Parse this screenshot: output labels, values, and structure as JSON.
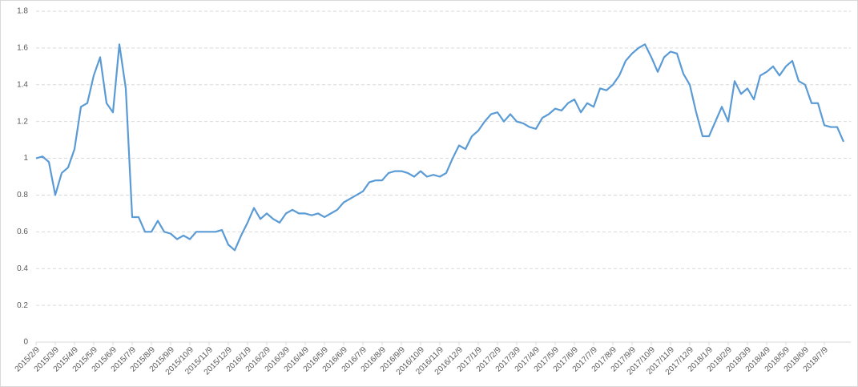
{
  "chart_data": {
    "type": "line",
    "categories": [
      "2015/2/9",
      null,
      null,
      "2015/3/9",
      null,
      null,
      "2015/4/9",
      null,
      null,
      "2015/5/9",
      null,
      null,
      "2015/6/9",
      null,
      null,
      "2015/7/9",
      null,
      null,
      "2015/8/9",
      null,
      null,
      "2015/9/9",
      null,
      null,
      "2015/10/9",
      null,
      null,
      "2015/11/9",
      null,
      null,
      "2015/12/9",
      null,
      null,
      "2016/1/9",
      null,
      null,
      "2016/2/9",
      null,
      null,
      "2016/3/9",
      null,
      null,
      "2016/4/9",
      null,
      null,
      "2016/5/9",
      null,
      null,
      "2016/6/9",
      null,
      null,
      "2016/7/9",
      null,
      null,
      "2016/8/9",
      null,
      null,
      "2016/9/9",
      null,
      null,
      "2016/10/9",
      null,
      null,
      "2016/11/9",
      null,
      null,
      "2016/12/9",
      null,
      null,
      "2017/1/9",
      null,
      null,
      "2017/2/9",
      null,
      null,
      "2017/3/9",
      null,
      null,
      "2017/4/9",
      null,
      null,
      "2017/5/9",
      null,
      null,
      "2017/6/9",
      null,
      null,
      "2017/7/9",
      null,
      null,
      "2017/8/9",
      null,
      null,
      "2017/9/9",
      null,
      null,
      "2017/10/9",
      null,
      null,
      "2017/11/9",
      null,
      null,
      "2017/12/9",
      null,
      null,
      "2018/1/9",
      null,
      null,
      "2018/2/9",
      null,
      null,
      "2018/3/9",
      null,
      null,
      "2018/4/9",
      null,
      null,
      "2018/5/9",
      null,
      null,
      "2018/6/9",
      null,
      null,
      "2018/7/9",
      null,
      null,
      null
    ],
    "series": [
      {
        "color": "#5b9bd5",
        "values": [
          1.0,
          1.01,
          0.98,
          0.8,
          0.92,
          0.95,
          1.05,
          1.28,
          1.3,
          1.45,
          1.55,
          1.3,
          1.25,
          1.62,
          1.38,
          0.68,
          0.68,
          0.6,
          0.6,
          0.66,
          0.6,
          0.59,
          0.56,
          0.58,
          0.56,
          0.6,
          0.6,
          0.6,
          0.6,
          0.61,
          0.53,
          0.5,
          0.58,
          0.65,
          0.73,
          0.67,
          0.7,
          0.67,
          0.65,
          0.7,
          0.72,
          0.7,
          0.7,
          0.69,
          0.7,
          0.68,
          0.7,
          0.72,
          0.76,
          0.78,
          0.8,
          0.82,
          0.87,
          0.88,
          0.88,
          0.92,
          0.93,
          0.93,
          0.92,
          0.9,
          0.93,
          0.9,
          0.91,
          0.9,
          0.92,
          1.0,
          1.07,
          1.05,
          1.12,
          1.15,
          1.2,
          1.24,
          1.25,
          1.2,
          1.24,
          1.2,
          1.19,
          1.17,
          1.16,
          1.22,
          1.24,
          1.27,
          1.26,
          1.3,
          1.32,
          1.25,
          1.3,
          1.28,
          1.38,
          1.37,
          1.4,
          1.45,
          1.53,
          1.57,
          1.6,
          1.62,
          1.55,
          1.47,
          1.55,
          1.58,
          1.57,
          1.46,
          1.4,
          1.25,
          1.12,
          1.12,
          1.2,
          1.28,
          1.2,
          1.42,
          1.35,
          1.38,
          1.32,
          1.45,
          1.47,
          1.5,
          1.45,
          1.5,
          1.53,
          1.42,
          1.4,
          1.3,
          1.3,
          1.18,
          1.17,
          1.17,
          1.09
        ]
      }
    ],
    "ylim": [
      0,
      1.8
    ],
    "yticks": [
      0,
      0.2,
      0.4,
      0.6,
      0.8,
      1,
      1.2,
      1.4,
      1.6,
      1.8
    ],
    "grid": true
  }
}
